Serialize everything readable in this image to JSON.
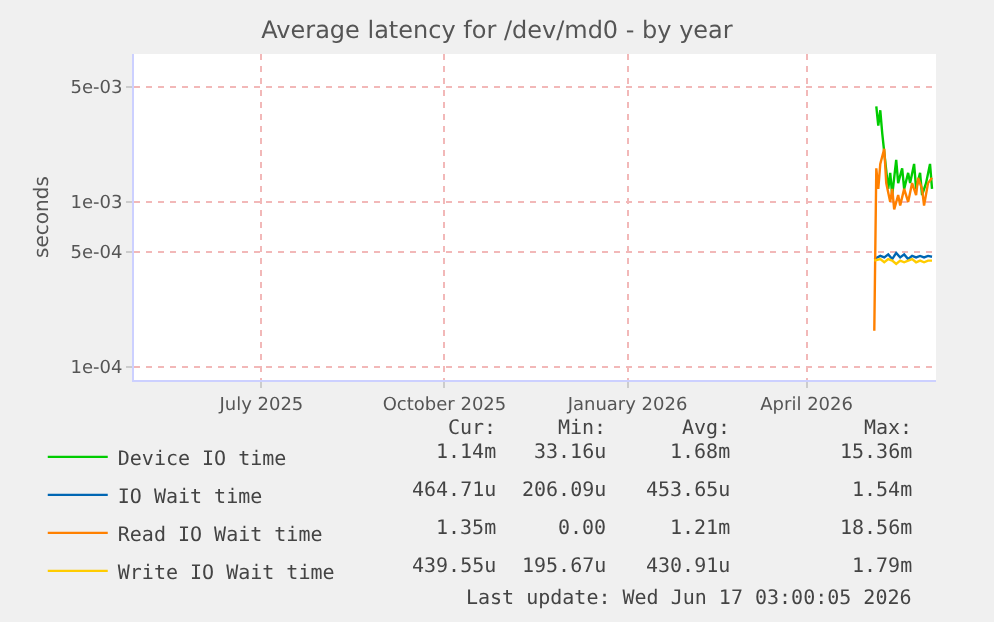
{
  "chart_data": {
    "type": "line",
    "title": "Average latency for /dev/md0 - by year",
    "ylabel": "seconds",
    "log": "y",
    "grid": true,
    "legend": "bottom",
    "marker": "none",
    "line_style": "solid",
    "xlim": [
      "2025-04-28",
      "2026-06-05"
    ],
    "xticks": [
      {
        "value": "2025-07-01",
        "label": "July 2025"
      },
      {
        "value": "2025-10-01",
        "label": "October 2025"
      },
      {
        "value": "2026-01-01",
        "label": "January 2026"
      },
      {
        "value": "2026-04-01",
        "label": "April 2026"
      }
    ],
    "ylim": [
      8.3e-05,
      0.0079
    ],
    "yticks": [
      {
        "value": 0.0001,
        "label": "1e-04"
      },
      {
        "value": 0.0005,
        "label": "5e-04"
      },
      {
        "value": 0.001,
        "label": "1e-03"
      },
      {
        "value": 0.005,
        "label": "5e-03"
      }
    ],
    "series": [
      {
        "name": "Device IO time",
        "color": "#00cc00",
        "x": [
          "2026-05-06",
          "2026-05-07",
          "2026-05-08",
          "2026-05-09",
          "2026-05-10",
          "2026-05-12",
          "2026-05-13",
          "2026-05-14",
          "2026-05-16",
          "2026-05-17",
          "2026-05-19",
          "2026-05-20",
          "2026-05-22",
          "2026-05-23",
          "2026-05-25",
          "2026-05-26",
          "2026-05-28",
          "2026-05-29",
          "2026-05-31",
          "2026-06-02",
          "2026-06-03"
        ],
        "values": [
          0.0038,
          0.0029,
          0.0036,
          0.0026,
          0.002,
          0.0012,
          0.0015,
          0.0011,
          0.0018,
          0.0013,
          0.0016,
          0.0012,
          0.0015,
          0.0013,
          0.0017,
          0.0012,
          0.0015,
          0.0011,
          0.0013,
          0.0017,
          0.0012
        ]
      },
      {
        "name": "IO Wait time",
        "color": "#0066b3",
        "x": [
          "2026-05-05",
          "2026-05-08",
          "2026-05-10",
          "2026-05-12",
          "2026-05-14",
          "2026-05-16",
          "2026-05-18",
          "2026-05-20",
          "2026-05-22",
          "2026-05-24",
          "2026-05-26",
          "2026-05-28",
          "2026-05-30",
          "2026-06-01",
          "2026-06-03"
        ],
        "values": [
          0.00045,
          0.00047,
          0.00046,
          0.00048,
          0.00045,
          0.00049,
          0.00046,
          0.00048,
          0.00045,
          0.00047,
          0.00046,
          0.00047,
          0.00046,
          0.00047,
          0.000465
        ]
      },
      {
        "name": "Read IO Wait time",
        "color": "#ff8000",
        "x": [
          "2026-05-05",
          "2026-05-06",
          "2026-05-07",
          "2026-05-08",
          "2026-05-10",
          "2026-05-11",
          "2026-05-13",
          "2026-05-14",
          "2026-05-15",
          "2026-05-17",
          "2026-05-18",
          "2026-05-20",
          "2026-05-22",
          "2026-05-24",
          "2026-05-26",
          "2026-05-27",
          "2026-05-29",
          "2026-05-30",
          "2026-06-01",
          "2026-06-03"
        ],
        "values": [
          0.000165,
          0.0016,
          0.0012,
          0.0017,
          0.0021,
          0.0013,
          0.001,
          0.0012,
          0.0009,
          0.0011,
          0.00095,
          0.0012,
          0.001,
          0.0013,
          0.0011,
          0.0014,
          0.0012,
          0.00095,
          0.0013,
          0.0014
        ]
      },
      {
        "name": "Write IO Wait time",
        "color": "#ffcc00",
        "x": [
          "2026-05-05",
          "2026-05-08",
          "2026-05-10",
          "2026-05-12",
          "2026-05-14",
          "2026-05-16",
          "2026-05-18",
          "2026-05-20",
          "2026-05-22",
          "2026-05-24",
          "2026-05-26",
          "2026-05-28",
          "2026-05-30",
          "2026-06-01",
          "2026-06-03"
        ],
        "values": [
          0.00044,
          0.00045,
          0.00043,
          0.00045,
          0.00044,
          0.00042,
          0.00044,
          0.00043,
          0.00044,
          0.00045,
          0.00043,
          0.00044,
          0.00043,
          0.00044,
          0.00044
        ]
      }
    ],
    "annotations": [
      "Cur:",
      "Min:",
      "Avg:",
      "Max:",
      "1.14m",
      "33.16u",
      "1.68m",
      "15.36m",
      "464.71u",
      "206.09u",
      "453.65u",
      "1.54m",
      "1.35m",
      "0.00",
      "1.21m",
      "18.56m",
      "439.55u",
      "195.67u",
      "430.91u",
      "1.79m",
      "Last update: Wed Jun 17 03:00:05 2026"
    ]
  }
}
